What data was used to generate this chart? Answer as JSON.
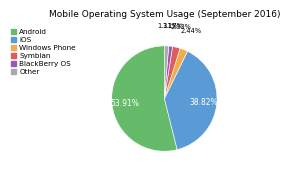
{
  "title": "Mobile Operating System Usage (September 2016)",
  "labels": [
    "Android",
    "iOS",
    "Windows Phone",
    "Symbian",
    "BlackBerry OS",
    "Other"
  ],
  "values": [
    53.37,
    38.43,
    2.42,
    2.31,
    1.16,
    1.3
  ],
  "colors": [
    "#66bb6a",
    "#5b9bd5",
    "#f0ad4e",
    "#e05c5c",
    "#9b59b6",
    "#aaaaaa"
  ],
  "startangle": 90,
  "title_fontsize": 6.5,
  "legend_fontsize": 5.2,
  "autopct_fontsize_large": 5.5,
  "autopct_fontsize_small": 4.8,
  "background_color": "#ffffff"
}
